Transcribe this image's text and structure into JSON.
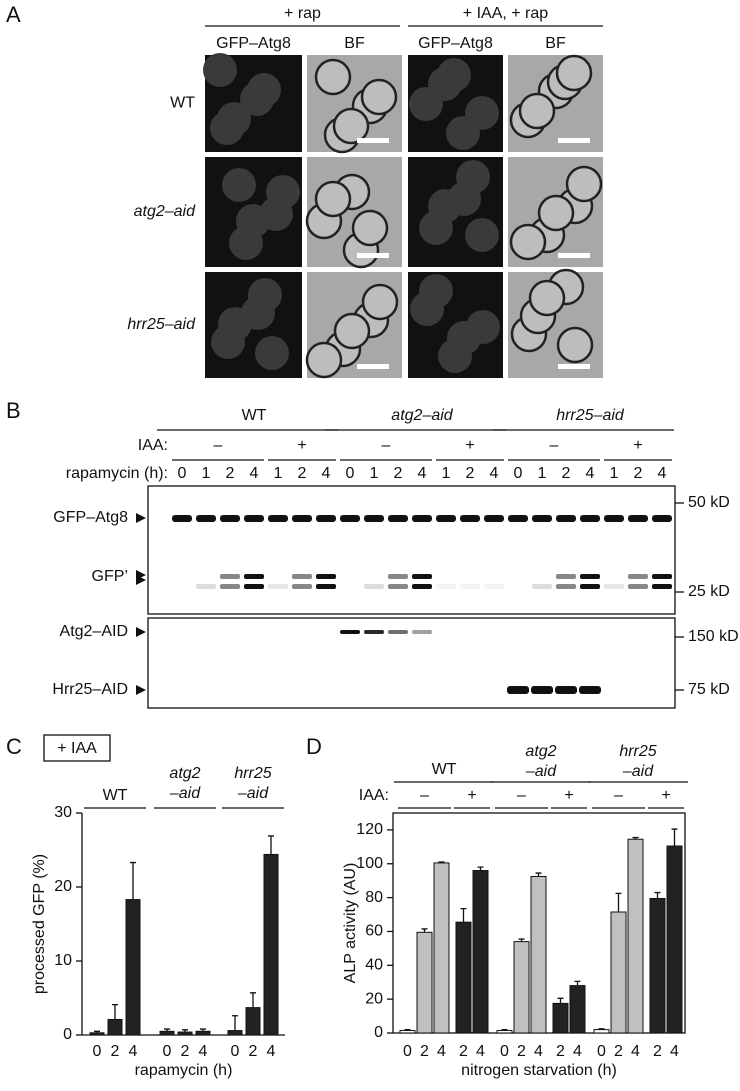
{
  "panel_a": {
    "label": "A",
    "conditions": [
      "+ rap",
      "+ IAA, + rap"
    ],
    "columns": [
      "GFP–Atg8",
      "BF",
      "GFP–Atg8",
      "BF"
    ],
    "rows": [
      "WT",
      "atg2–aid",
      "hrr25–aid"
    ]
  },
  "panel_b": {
    "label": "B",
    "strains": [
      "WT",
      "atg2–aid",
      "hrr25–aid"
    ],
    "iaa_label": "IAA:",
    "iaa": [
      "–",
      "+"
    ],
    "time_label": "rapamycin (h):",
    "lanes": [
      "0",
      "1",
      "2",
      "4",
      "1",
      "2",
      "4"
    ],
    "bands": [
      "GFP–Atg8",
      "GFP’",
      "Atg2–AID",
      "Hrr25–AID"
    ],
    "markers": [
      "50 kD",
      "25 kD",
      "150 kD",
      "75 kD"
    ]
  },
  "chart_data": [
    {
      "type": "bar",
      "panel": "C",
      "note_box": "+ IAA",
      "ylabel": "processed GFP (%)",
      "xlabel": "rapamycin (h)",
      "ylim": [
        0,
        30
      ],
      "yticks": [
        0,
        10,
        20,
        30
      ],
      "groups": [
        {
          "name": [
            "WT"
          ],
          "categories": [
            "0",
            "2",
            "4"
          ],
          "values": [
            0.3,
            2.1,
            18.3
          ],
          "errors": [
            0.2,
            2,
            5
          ],
          "colors": [
            "#222222",
            "#222222",
            "#222222"
          ]
        },
        {
          "name": [
            "atg2",
            "–aid"
          ],
          "categories": [
            "0",
            "2",
            "4"
          ],
          "values": [
            0.5,
            0.4,
            0.5
          ],
          "errors": [
            0.3,
            0.3,
            0.3
          ],
          "colors": [
            "#222222",
            "#222222",
            "#222222"
          ]
        },
        {
          "name": [
            "hrr25",
            "–aid"
          ],
          "categories": [
            "0",
            "2",
            "4"
          ],
          "values": [
            0.6,
            3.7,
            24.4
          ],
          "errors": [
            2,
            2,
            2.5
          ],
          "colors": [
            "#222222",
            "#222222",
            "#222222"
          ]
        }
      ]
    },
    {
      "type": "bar",
      "panel": "D",
      "iaa_label": "IAA:",
      "subgroups": [
        "–",
        "+"
      ],
      "ylabel": "ALP activity (AU)",
      "xlabel": "nitrogen starvation (h)",
      "ylim": [
        0,
        130
      ],
      "yticks": [
        0,
        20,
        40,
        60,
        80,
        100,
        120
      ],
      "groups": [
        {
          "name": [
            "WT"
          ],
          "categories": [
            "0",
            "2",
            "4",
            "2",
            "4"
          ],
          "values": [
            1.5,
            59.5,
            100.5,
            65.5,
            96
          ],
          "errors": [
            0.5,
            2,
            0.5,
            8,
            2
          ],
          "colors": [
            "#ffffff",
            "#c0c0c0",
            "#c0c0c0",
            "#222222",
            "#222222"
          ]
        },
        {
          "name": [
            "atg2",
            "–aid"
          ],
          "categories": [
            "0",
            "2",
            "4",
            "2",
            "4"
          ],
          "values": [
            1.5,
            54,
            92.5,
            17.5,
            28
          ],
          "errors": [
            0.5,
            1.5,
            2,
            3,
            2.5
          ],
          "colors": [
            "#ffffff",
            "#c0c0c0",
            "#c0c0c0",
            "#222222",
            "#222222"
          ]
        },
        {
          "name": [
            "hrr25",
            "–aid"
          ],
          "categories": [
            "0",
            "2",
            "4",
            "2",
            "4"
          ],
          "values": [
            2,
            71.5,
            114.5,
            79.5,
            110.5
          ],
          "errors": [
            0.5,
            11,
            1,
            3.5,
            10
          ],
          "colors": [
            "#ffffff",
            "#c0c0c0",
            "#c0c0c0",
            "#222222",
            "#222222"
          ]
        }
      ]
    }
  ]
}
